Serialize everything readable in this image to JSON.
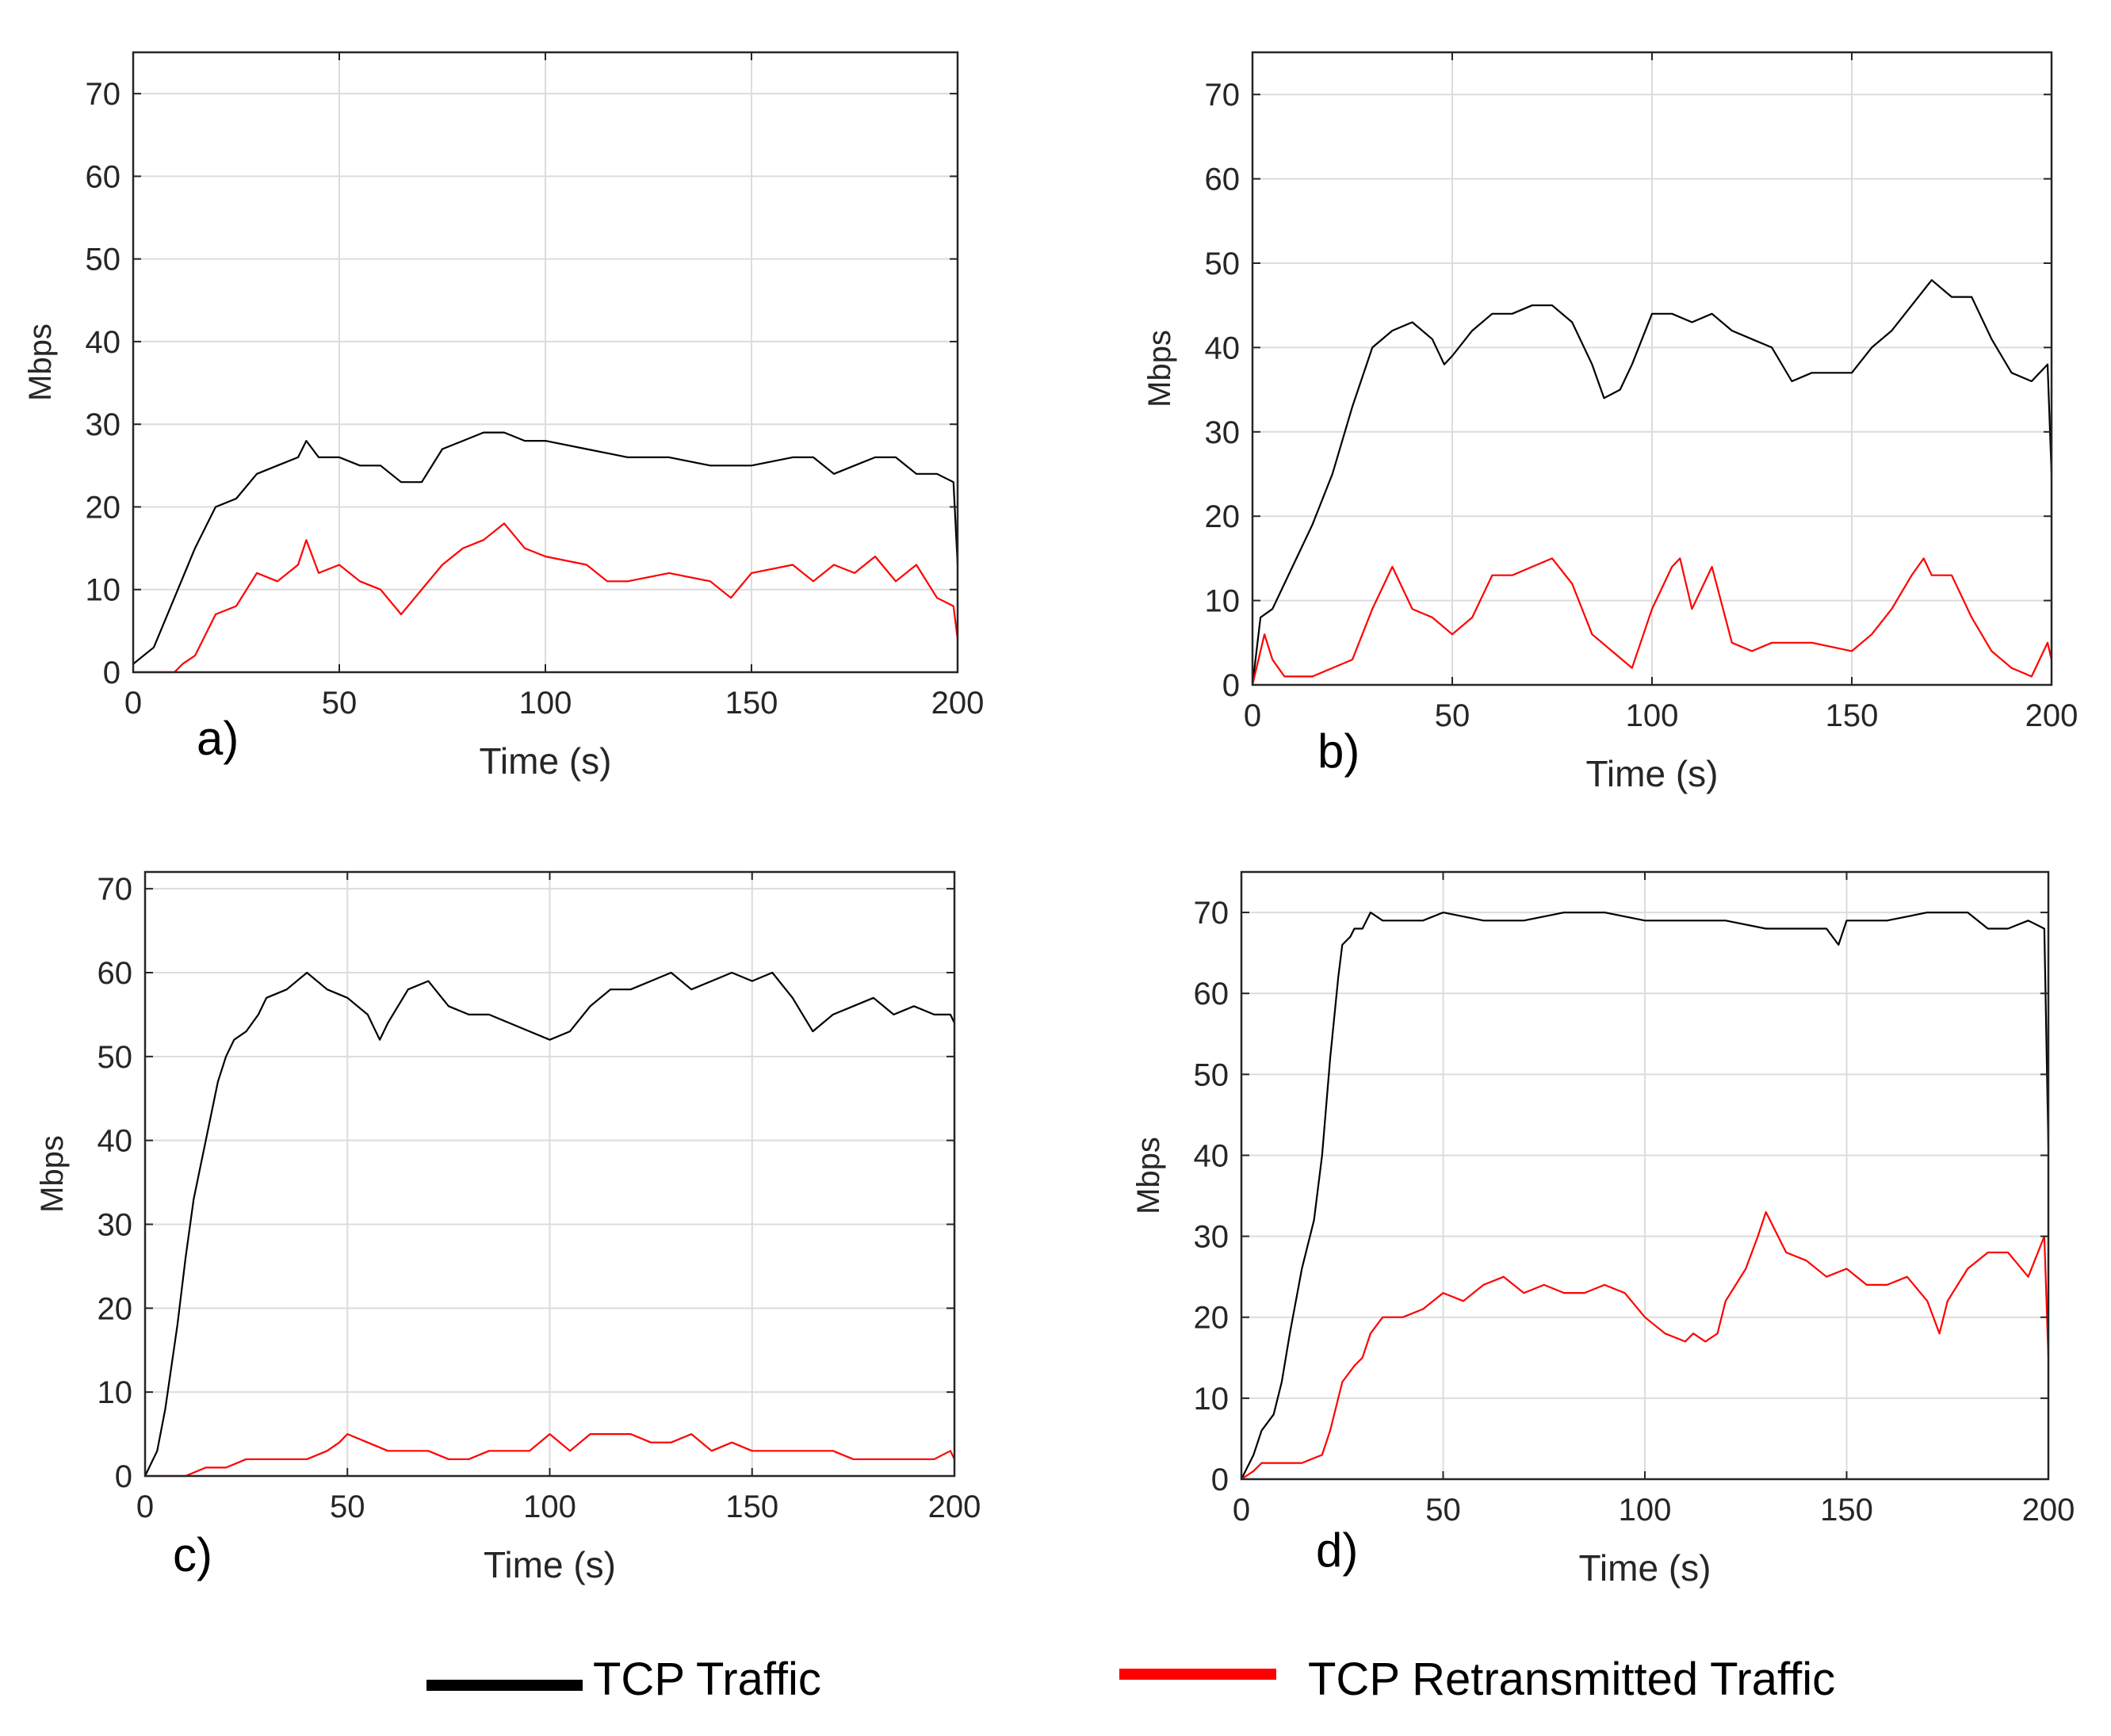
{
  "legend": [
    {
      "label": "TCP Traffic",
      "color": "#000000"
    },
    {
      "label": "TCP Retransmitted Traffic",
      "color": "#ff0000"
    }
  ],
  "chart_data": [
    {
      "type": "line",
      "panel_label": "a)",
      "xlabel": "Time (s)",
      "ylabel": "Mbps",
      "xlim": [
        0,
        200
      ],
      "ylim": [
        0,
        75
      ],
      "xticks": [
        0,
        50,
        100,
        150,
        200
      ],
      "yticks": [
        0,
        10,
        20,
        30,
        40,
        50,
        60,
        70
      ],
      "grid": true,
      "series": [
        {
          "name": "TCP Traffic",
          "color": "#000000",
          "x": [
            0,
            5,
            10,
            15,
            20,
            25,
            30,
            35,
            40,
            42,
            45,
            50,
            55,
            60,
            65,
            70,
            75,
            80,
            85,
            90,
            95,
            100,
            110,
            120,
            130,
            140,
            150,
            160,
            165,
            170,
            175,
            180,
            185,
            190,
            195,
            199,
            200
          ],
          "y": [
            1,
            3,
            9,
            15,
            20,
            21,
            24,
            25,
            26,
            28,
            26,
            26,
            25,
            25,
            23,
            23,
            27,
            28,
            29,
            29,
            28,
            28,
            27,
            26,
            26,
            25,
            25,
            26,
            26,
            24,
            25,
            26,
            26,
            24,
            24,
            23,
            13
          ]
        },
        {
          "name": "TCP Retransmitted Traffic",
          "color": "#ff0000",
          "x": [
            0,
            5,
            10,
            12,
            15,
            20,
            25,
            30,
            35,
            40,
            42,
            45,
            50,
            55,
            60,
            65,
            70,
            75,
            80,
            85,
            90,
            95,
            100,
            110,
            115,
            120,
            130,
            140,
            145,
            150,
            160,
            165,
            170,
            175,
            180,
            185,
            190,
            195,
            199,
            200
          ],
          "y": [
            0,
            0,
            0,
            1,
            2,
            7,
            8,
            12,
            11,
            13,
            16,
            12,
            13,
            11,
            10,
            7,
            10,
            13,
            15,
            16,
            18,
            15,
            14,
            13,
            11,
            11,
            12,
            11,
            9,
            12,
            13,
            11,
            13,
            12,
            14,
            11,
            13,
            9,
            8,
            4
          ]
        }
      ]
    },
    {
      "type": "line",
      "panel_label": "b)",
      "xlabel": "Time (s)",
      "ylabel": "Mbps",
      "xlim": [
        0,
        200
      ],
      "ylim": [
        0,
        75
      ],
      "xticks": [
        0,
        50,
        100,
        150,
        200
      ],
      "yticks": [
        0,
        10,
        20,
        30,
        40,
        50,
        60,
        70
      ],
      "grid": true,
      "series": [
        {
          "name": "TCP Traffic",
          "color": "#000000",
          "x": [
            0,
            2,
            5,
            10,
            15,
            20,
            25,
            30,
            35,
            40,
            45,
            48,
            50,
            55,
            60,
            65,
            70,
            75,
            80,
            85,
            88,
            92,
            95,
            100,
            105,
            110,
            115,
            120,
            125,
            130,
            135,
            140,
            145,
            150,
            155,
            160,
            165,
            170,
            175,
            180,
            185,
            190,
            195,
            199,
            200
          ],
          "y": [
            0,
            8,
            9,
            14,
            19,
            25,
            33,
            40,
            42,
            43,
            41,
            38,
            39,
            42,
            44,
            44,
            45,
            45,
            43,
            38,
            34,
            35,
            38,
            44,
            44,
            43,
            44,
            42,
            41,
            40,
            36,
            37,
            37,
            37,
            40,
            42,
            45,
            48,
            46,
            46,
            41,
            37,
            36,
            38,
            25
          ]
        },
        {
          "name": "TCP Retransmitted Traffic",
          "color": "#ff0000",
          "x": [
            0,
            3,
            5,
            8,
            10,
            15,
            20,
            25,
            30,
            35,
            40,
            45,
            50,
            55,
            60,
            65,
            70,
            75,
            80,
            85,
            90,
            95,
            100,
            105,
            107,
            110,
            115,
            120,
            125,
            130,
            140,
            150,
            155,
            160,
            165,
            168,
            170,
            175,
            180,
            185,
            190,
            195,
            199,
            200
          ],
          "y": [
            0,
            6,
            3,
            1,
            1,
            1,
            2,
            3,
            9,
            14,
            9,
            8,
            6,
            8,
            13,
            13,
            14,
            15,
            12,
            6,
            4,
            2,
            9,
            14,
            15,
            9,
            14,
            5,
            4,
            5,
            5,
            4,
            6,
            9,
            13,
            15,
            13,
            13,
            8,
            4,
            2,
            1,
            5,
            3
          ]
        }
      ]
    },
    {
      "type": "line",
      "panel_label": "c)",
      "xlabel": "Time (s)",
      "ylabel": "Mbps",
      "xlim": [
        0,
        200
      ],
      "ylim": [
        0,
        72
      ],
      "xticks": [
        0,
        50,
        100,
        150,
        200
      ],
      "yticks": [
        0,
        10,
        20,
        30,
        40,
        50,
        60,
        70
      ],
      "grid": true,
      "series": [
        {
          "name": "TCP Traffic",
          "color": "#000000",
          "x": [
            0,
            3,
            5,
            8,
            10,
            12,
            15,
            18,
            20,
            22,
            25,
            28,
            30,
            35,
            40,
            45,
            50,
            55,
            58,
            60,
            65,
            70,
            75,
            80,
            85,
            90,
            95,
            100,
            105,
            110,
            115,
            120,
            125,
            130,
            135,
            140,
            145,
            150,
            155,
            160,
            165,
            170,
            175,
            180,
            185,
            190,
            195,
            199,
            200
          ],
          "y": [
            0,
            3,
            8,
            18,
            26,
            33,
            40,
            47,
            50,
            52,
            53,
            55,
            57,
            58,
            60,
            58,
            57,
            55,
            52,
            54,
            58,
            59,
            56,
            55,
            55,
            54,
            53,
            52,
            53,
            56,
            58,
            58,
            59,
            60,
            58,
            59,
            60,
            59,
            60,
            57,
            53,
            55,
            56,
            57,
            55,
            56,
            55,
            55,
            54
          ]
        },
        {
          "name": "TCP Retransmitted Traffic",
          "color": "#ff0000",
          "x": [
            0,
            5,
            10,
            15,
            20,
            25,
            30,
            35,
            40,
            45,
            48,
            50,
            55,
            60,
            65,
            70,
            75,
            80,
            85,
            90,
            95,
            100,
            105,
            110,
            115,
            120,
            125,
            130,
            135,
            140,
            145,
            150,
            155,
            160,
            165,
            170,
            175,
            180,
            185,
            190,
            195,
            199,
            200
          ],
          "y": [
            0,
            0,
            0,
            1,
            1,
            2,
            2,
            2,
            2,
            3,
            4,
            5,
            4,
            3,
            3,
            3,
            2,
            2,
            3,
            3,
            3,
            5,
            3,
            5,
            5,
            5,
            4,
            4,
            5,
            3,
            4,
            3,
            3,
            3,
            3,
            3,
            2,
            2,
            2,
            2,
            2,
            3,
            2
          ]
        }
      ]
    },
    {
      "type": "line",
      "panel_label": "d)",
      "xlabel": "Time (s)",
      "ylabel": "Mbps",
      "xlim": [
        0,
        200
      ],
      "ylim": [
        0,
        75
      ],
      "xticks": [
        0,
        50,
        100,
        150,
        200
      ],
      "yticks": [
        0,
        10,
        20,
        30,
        40,
        50,
        60,
        70
      ],
      "grid": true,
      "series": [
        {
          "name": "TCP Traffic",
          "color": "#000000",
          "x": [
            0,
            3,
            5,
            8,
            10,
            12,
            15,
            18,
            20,
            22,
            24,
            25,
            27,
            28,
            30,
            32,
            35,
            40,
            45,
            50,
            60,
            70,
            80,
            90,
            100,
            110,
            120,
            130,
            140,
            145,
            148,
            150,
            155,
            160,
            170,
            180,
            185,
            190,
            195,
            199,
            200
          ],
          "y": [
            0,
            3,
            6,
            8,
            12,
            18,
            26,
            32,
            40,
            52,
            62,
            66,
            67,
            68,
            68,
            70,
            69,
            69,
            69,
            70,
            69,
            69,
            70,
            70,
            69,
            69,
            69,
            68,
            68,
            68,
            66,
            69,
            69,
            69,
            70,
            70,
            68,
            68,
            69,
            68,
            41
          ]
        },
        {
          "name": "TCP Retransmitted Traffic",
          "color": "#ff0000",
          "x": [
            0,
            3,
            5,
            10,
            15,
            20,
            22,
            25,
            28,
            30,
            32,
            35,
            40,
            45,
            50,
            55,
            60,
            65,
            70,
            75,
            80,
            85,
            90,
            95,
            100,
            105,
            110,
            112,
            115,
            118,
            120,
            125,
            128,
            130,
            135,
            140,
            145,
            150,
            155,
            160,
            165,
            170,
            173,
            175,
            180,
            185,
            190,
            195,
            199,
            200
          ],
          "y": [
            0,
            1,
            2,
            2,
            2,
            3,
            6,
            12,
            14,
            15,
            18,
            20,
            20,
            21,
            23,
            22,
            24,
            25,
            23,
            24,
            23,
            23,
            24,
            23,
            20,
            18,
            17,
            18,
            17,
            18,
            22,
            26,
            30,
            33,
            28,
            27,
            25,
            26,
            24,
            24,
            25,
            22,
            18,
            22,
            26,
            28,
            28,
            25,
            30,
            15
          ]
        }
      ]
    }
  ]
}
